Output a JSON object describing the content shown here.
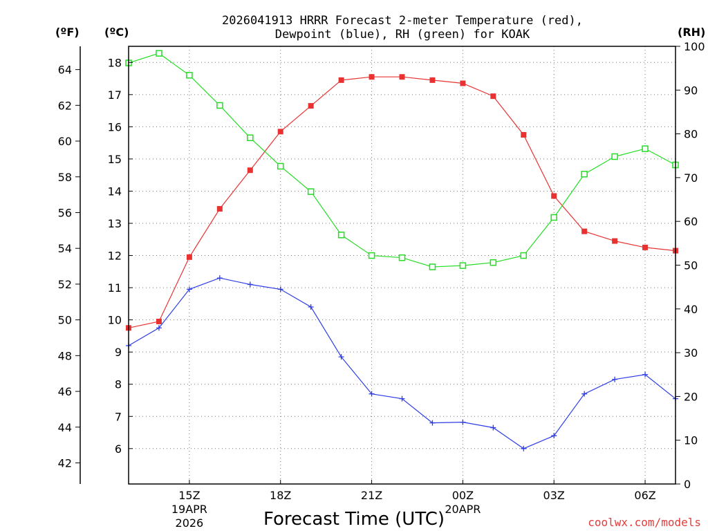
{
  "chart_data": {
    "type": "line",
    "title_lines": [
      "2026041913 HRRR Forecast 2-meter Temperature (red),",
      "Dewpoint (blue), RH (green) for KOAK"
    ],
    "units": {
      "fahrenheit": "(ºF)",
      "celsius": "(ºC)",
      "rh": "(RH)"
    },
    "xlabel": "Forecast Time (UTC)",
    "credit": "coolwx.com/models",
    "x_hours": [
      13,
      14,
      15,
      16,
      17,
      18,
      19,
      20,
      21,
      22,
      23,
      24,
      25,
      26,
      27,
      28,
      29,
      30,
      31
    ],
    "x_ticks": [
      {
        "hour": 15,
        "label": "15Z",
        "date": [
          "19APR",
          "2026"
        ]
      },
      {
        "hour": 18,
        "label": "18Z"
      },
      {
        "hour": 21,
        "label": "21Z"
      },
      {
        "hour": 24,
        "label": "00Z",
        "date": [
          "20APR"
        ]
      },
      {
        "hour": 27,
        "label": "03Z"
      },
      {
        "hour": 30,
        "label": "06Z"
      }
    ],
    "xlim": [
      13,
      31
    ],
    "ylim_c": [
      4.9,
      18.5
    ],
    "ylim_rh": [
      0,
      100
    ],
    "celsius_ticks": [
      6,
      7,
      8,
      9,
      10,
      11,
      12,
      13,
      14,
      15,
      16,
      17,
      18
    ],
    "fahrenheit_ticks": [
      42,
      44,
      46,
      48,
      50,
      52,
      54,
      56,
      58,
      60,
      62,
      64
    ],
    "rh_ticks": [
      0,
      10,
      20,
      30,
      40,
      50,
      60,
      70,
      80,
      90,
      100
    ],
    "series": [
      {
        "name": "Temperature",
        "color": "#e83232",
        "axis": "celsius",
        "marker": "filled-square",
        "values": [
          9.75,
          9.95,
          11.95,
          13.45,
          14.65,
          15.85,
          16.65,
          17.45,
          17.55,
          17.55,
          17.45,
          17.35,
          16.95,
          15.75,
          13.85,
          12.75,
          12.45,
          12.25,
          12.15
        ]
      },
      {
        "name": "Dewpoint",
        "color": "#2c3ce8",
        "axis": "celsius",
        "marker": "plus",
        "values": [
          9.2,
          9.75,
          10.95,
          11.3,
          11.1,
          10.95,
          10.4,
          8.85,
          7.7,
          7.55,
          6.8,
          6.82,
          6.65,
          6.0,
          6.4,
          7.7,
          8.15,
          8.3,
          7.55
        ]
      },
      {
        "name": "RH",
        "color": "#22dd22",
        "axis": "rh",
        "marker": "open-square",
        "values": [
          96.2,
          98.4,
          93.4,
          86.5,
          79.1,
          72.6,
          66.8,
          56.9,
          52.2,
          51.7,
          49.6,
          49.9,
          50.6,
          52.2,
          60.9,
          70.8,
          74.8,
          76.6,
          72.9
        ]
      }
    ]
  }
}
